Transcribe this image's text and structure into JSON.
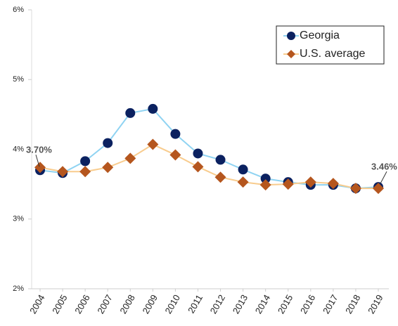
{
  "chart_data": {
    "type": "line",
    "x": [
      "2004",
      "2005",
      "2006",
      "2007",
      "2008",
      "2009",
      "2010",
      "2011",
      "2012",
      "2013",
      "2014",
      "2015",
      "2016",
      "2017",
      "2018",
      "2019"
    ],
    "series": [
      {
        "name": "Georgia",
        "color": "#8fd3f2",
        "marker_color": "#0b2160",
        "marker": "circle",
        "values": [
          3.7,
          3.66,
          3.83,
          4.09,
          4.52,
          4.58,
          4.22,
          3.94,
          3.85,
          3.71,
          3.58,
          3.53,
          3.49,
          3.49,
          3.44,
          3.46
        ],
        "value_labels": [
          "3.70%",
          null,
          null,
          null,
          null,
          null,
          null,
          null,
          null,
          null,
          null,
          null,
          null,
          null,
          null,
          "3.46%"
        ]
      },
      {
        "name": "U.S. average",
        "color": "#f8cc8e",
        "marker_color": "#b5561e",
        "marker": "diamond",
        "values": [
          3.74,
          3.68,
          3.68,
          3.74,
          3.87,
          4.07,
          3.92,
          3.75,
          3.6,
          3.53,
          3.49,
          3.5,
          3.53,
          3.51,
          3.44,
          3.44
        ]
      }
    ],
    "ylim": [
      2,
      6
    ],
    "yticks": [
      {
        "value": 2,
        "label": "2%"
      },
      {
        "value": 3,
        "label": "3%"
      },
      {
        "value": 4,
        "label": "4%"
      },
      {
        "value": 5,
        "label": "5%"
      },
      {
        "value": 6,
        "label": "6%"
      }
    ],
    "grid": false,
    "legend": "upper right"
  }
}
